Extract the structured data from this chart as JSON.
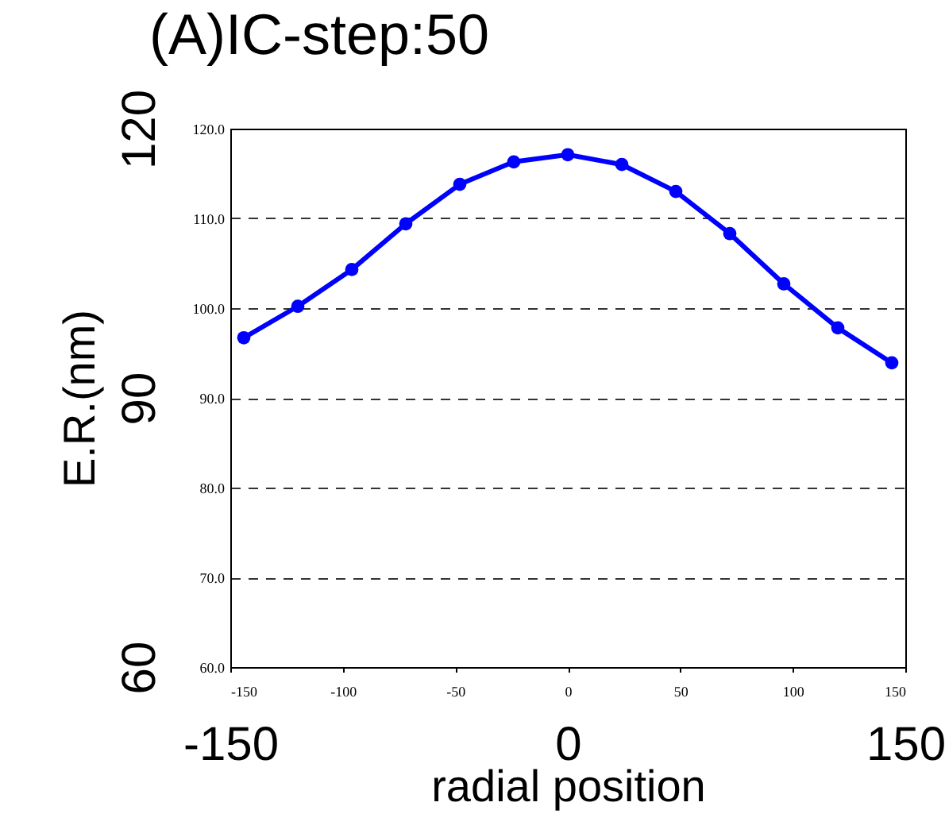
{
  "chart_data": {
    "type": "line",
    "title": "(A)IC-step:50",
    "xlabel": "radial position",
    "ylabel": "E.R.(nm)",
    "x": [
      -144,
      -120,
      -96,
      -72,
      -48,
      -24,
      0,
      24,
      48,
      72,
      96,
      120,
      144
    ],
    "series": [
      {
        "color": "#0000ff",
        "values": [
          96.7,
          100.2,
          104.3,
          109.4,
          113.8,
          116.3,
          117.1,
          116.0,
          113.0,
          108.3,
          102.7,
          97.8,
          93.9
        ]
      }
    ],
    "xlim": [
      -150,
      150
    ],
    "xticks": [
      -150,
      -100,
      -50,
      0,
      50,
      100,
      150
    ],
    "ylim": [
      60,
      120
    ],
    "yticks": [
      60,
      90,
      120
    ],
    "x2lim": [
      -150,
      150
    ],
    "x2ticks": [
      -150,
      0,
      150
    ],
    "y2lim": [
      60,
      120
    ],
    "y2ticks": [
      {
        "value": 60,
        "label": "60.0"
      },
      {
        "value": 70,
        "label": "70.0"
      },
      {
        "value": 80,
        "label": "80.0"
      },
      {
        "value": 90,
        "label": "90.0"
      },
      {
        "value": 100,
        "label": "100.0"
      },
      {
        "value": 110,
        "label": "110.0"
      },
      {
        "value": 120,
        "label": "120.0"
      }
    ],
    "grid": "y",
    "marker": "circle",
    "line_style": "solid",
    "legend": false
  }
}
